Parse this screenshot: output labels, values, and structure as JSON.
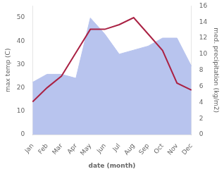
{
  "chart_data": {
    "type": "line",
    "categories": [
      "Jan",
      "Feb",
      "Mar",
      "Apr",
      "May",
      "Jun",
      "Jul",
      "Aug",
      "Sep",
      "Oct",
      "Nov",
      "Dec"
    ],
    "series": [
      {
        "type": "area",
        "color": "#b8c4ee",
        "axis": "y2",
        "values": [
          6.5,
          7.5,
          7.5,
          7.0,
          14.5,
          12.5,
          10.0,
          10.5,
          11.0,
          12.0,
          12.0,
          8.5
        ]
      },
      {
        "type": "line",
        "color": "#aa2244",
        "values": [
          14,
          20,
          25,
          35,
          45,
          45,
          47,
          50,
          43,
          36,
          22,
          19
        ]
      }
    ],
    "xlabel": "date (month)",
    "ylabel": "max temp (C)",
    "y2label": "med. precipitation (kg/m2)",
    "ylim": [
      0,
      55
    ],
    "yticks": [
      0,
      10,
      20,
      30,
      40,
      50
    ],
    "y2lim": [
      0,
      16
    ],
    "y2ticks": [
      0,
      2,
      4,
      6,
      8,
      10,
      12,
      14,
      16
    ],
    "grid": false
  }
}
